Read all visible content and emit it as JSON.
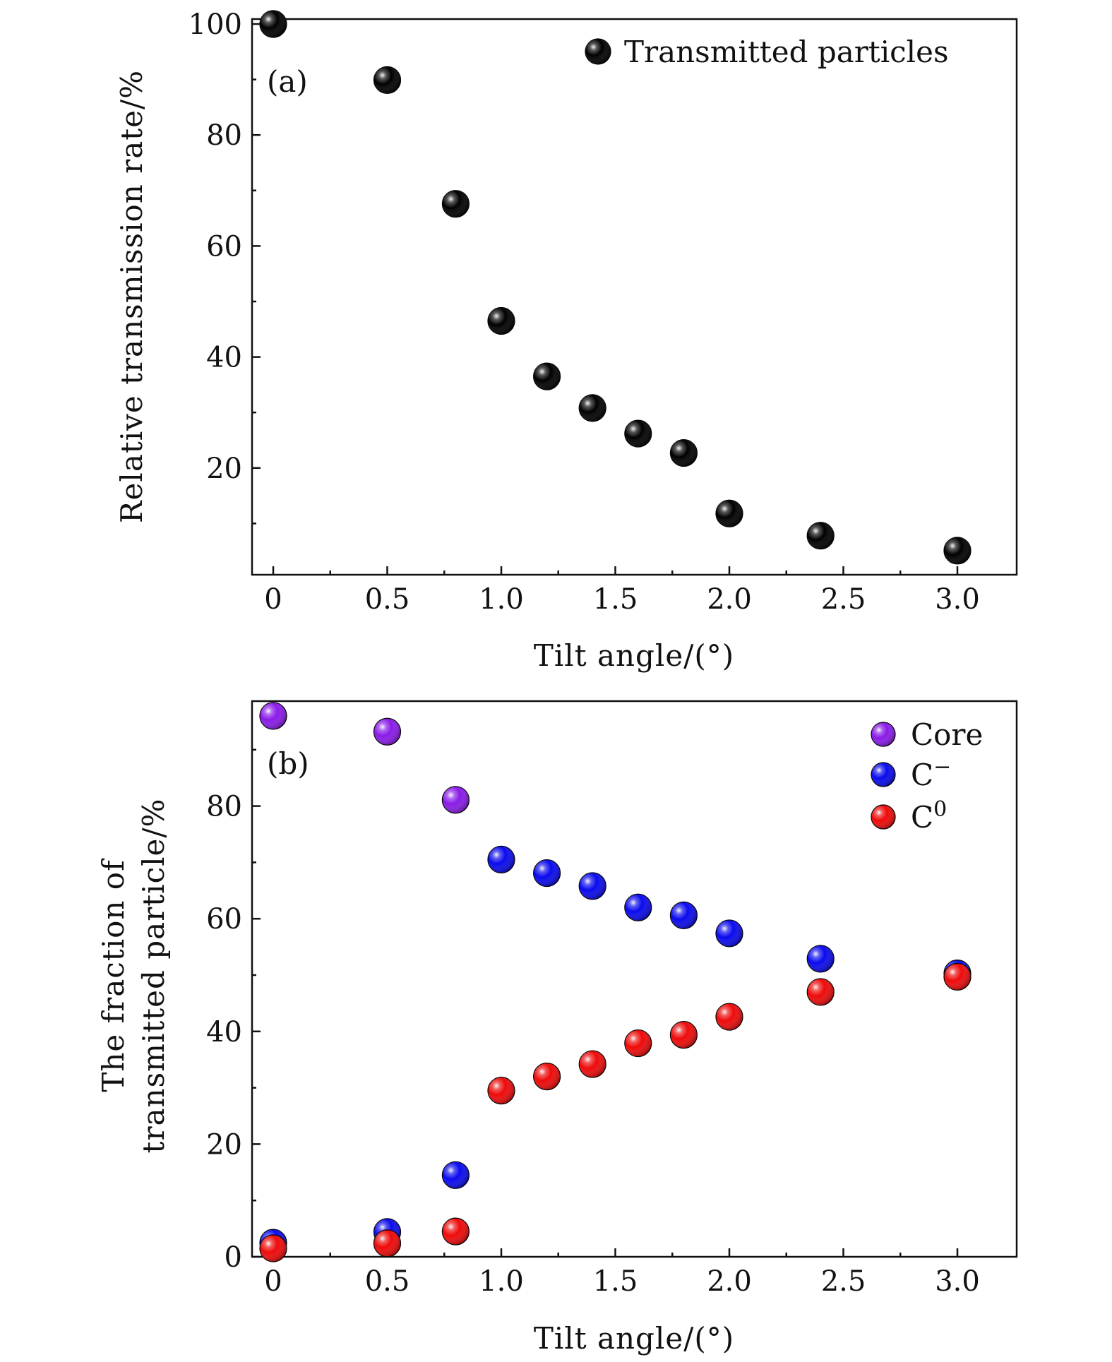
{
  "chart_data": [
    {
      "type": "scatter",
      "panel_label": "(a)",
      "xlabel": "Tilt angle/(°)",
      "ylabel": "Relative transmission rate/%",
      "xlim": [
        -0.1,
        3.25
      ],
      "ylim": [
        0,
        100
      ],
      "xticks": [
        0,
        0.5,
        1.0,
        1.5,
        2.0,
        2.5,
        3.0
      ],
      "xtick_labels": [
        "0",
        "0.5",
        "1.0",
        "1.5",
        "2.0",
        "2.5",
        "3.0"
      ],
      "yticks": [
        20,
        40,
        60,
        80,
        100
      ],
      "ytick_labels": [
        "20",
        "40",
        "60",
        "80",
        "100"
      ],
      "legend_position": "top-right",
      "series": [
        {
          "name": "Transmitted particles",
          "color": "#000000",
          "x": [
            0,
            0.5,
            0.8,
            1.0,
            1.2,
            1.4,
            1.6,
            1.8,
            2.0,
            2.4,
            3.0
          ],
          "y": [
            100,
            89.9,
            67.6,
            46.5,
            36.5,
            30.8,
            26.2,
            22.7,
            11.8,
            7.8,
            5.1
          ]
        }
      ]
    },
    {
      "type": "scatter",
      "panel_label": "(b)",
      "xlabel": "Tilt angle/(°)",
      "ylabel_lines": [
        "The fraction of",
        "transmitted particle/%"
      ],
      "xlim": [
        -0.1,
        3.25
      ],
      "ylim": [
        0,
        96
      ],
      "xticks": [
        0,
        0.5,
        1.0,
        1.5,
        2.0,
        2.5,
        3.0
      ],
      "xtick_labels": [
        "0",
        "0.5",
        "1.0",
        "1.5",
        "2.0",
        "2.5",
        "3.0"
      ],
      "yticks": [
        0,
        20,
        40,
        60,
        80
      ],
      "ytick_labels": [
        "0",
        "20",
        "40",
        "60",
        "80"
      ],
      "legend_position": "top-right",
      "series": [
        {
          "name": "Core",
          "name_base": "Core",
          "name_sup": "",
          "color": "#8a1be8",
          "x": [
            0,
            0.5,
            0.8
          ],
          "y": [
            96.0,
            93.2,
            81.1
          ]
        },
        {
          "name": "C⁻",
          "name_base": "C",
          "name_sup": "−",
          "color": "#0a0aee",
          "x": [
            0,
            0.5,
            0.8,
            1.0,
            1.2,
            1.4,
            1.6,
            1.8,
            2.0,
            2.4,
            3.0
          ],
          "y": [
            2.5,
            4.4,
            14.5,
            70.5,
            68.1,
            65.8,
            62.0,
            60.6,
            57.4,
            52.9,
            50.3
          ]
        },
        {
          "name": "C⁰",
          "name_base": "C",
          "name_sup": "0",
          "color": "#ee0a0a",
          "x": [
            0,
            0.5,
            0.8,
            1.0,
            1.2,
            1.4,
            1.6,
            1.8,
            2.0,
            2.4,
            3.0
          ],
          "y": [
            1.5,
            2.4,
            4.5,
            29.5,
            32.0,
            34.2,
            37.9,
            39.4,
            42.6,
            47.0,
            49.7
          ]
        }
      ]
    }
  ]
}
